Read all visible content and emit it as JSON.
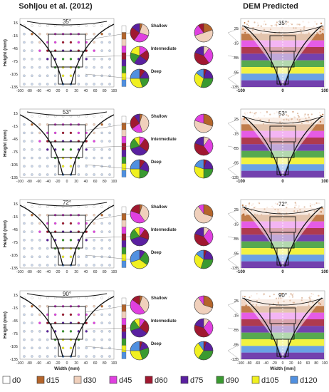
{
  "headers": {
    "left": "Sohljou et al. (2012)",
    "right": "DEM Predicted"
  },
  "left_axis": {
    "ylabel": "Height (mm)",
    "xlabel": "Width (mm)",
    "y_ticks": [
      "15",
      "-15",
      "-45",
      "-75",
      "-105",
      "-135"
    ],
    "x_ticks": [
      "-100",
      "-80",
      "-60",
      "-40",
      "-20",
      "0",
      "20",
      "40",
      "60",
      "80",
      "100"
    ]
  },
  "right_axis": {
    "xlabel": "Width [mm]",
    "y_ticks": [
      "25",
      "-15",
      "-55",
      "-95",
      "-135"
    ],
    "x_ticks": [
      "-100",
      "0",
      "100"
    ],
    "x_ticks_bottom": [
      "-100",
      "-80",
      "-60",
      "-40",
      "-20",
      "0",
      "20",
      "40",
      "60",
      "80",
      "100"
    ]
  },
  "zone_labels": [
    "Shallow",
    "Intermediate",
    "Deep"
  ],
  "rows": [
    {
      "angle": "35°"
    },
    {
      "angle": "53°"
    },
    {
      "angle": "72°"
    },
    {
      "angle": "90°"
    }
  ],
  "legend": {
    "items": [
      {
        "label": "d0",
        "color": "#ffffff"
      },
      {
        "label": "d15",
        "color": "#b5652b"
      },
      {
        "label": "d30",
        "color": "#f0d0bc"
      },
      {
        "label": "d45",
        "color": "#e040e0"
      },
      {
        "label": "d60",
        "color": "#a01830"
      },
      {
        "label": "d75",
        "color": "#5a20a0"
      },
      {
        "label": "d90",
        "color": "#3a9a30"
      },
      {
        "label": "d105",
        "color": "#f0f020"
      },
      {
        "label": "d120",
        "color": "#5090e0"
      }
    ]
  }
}
